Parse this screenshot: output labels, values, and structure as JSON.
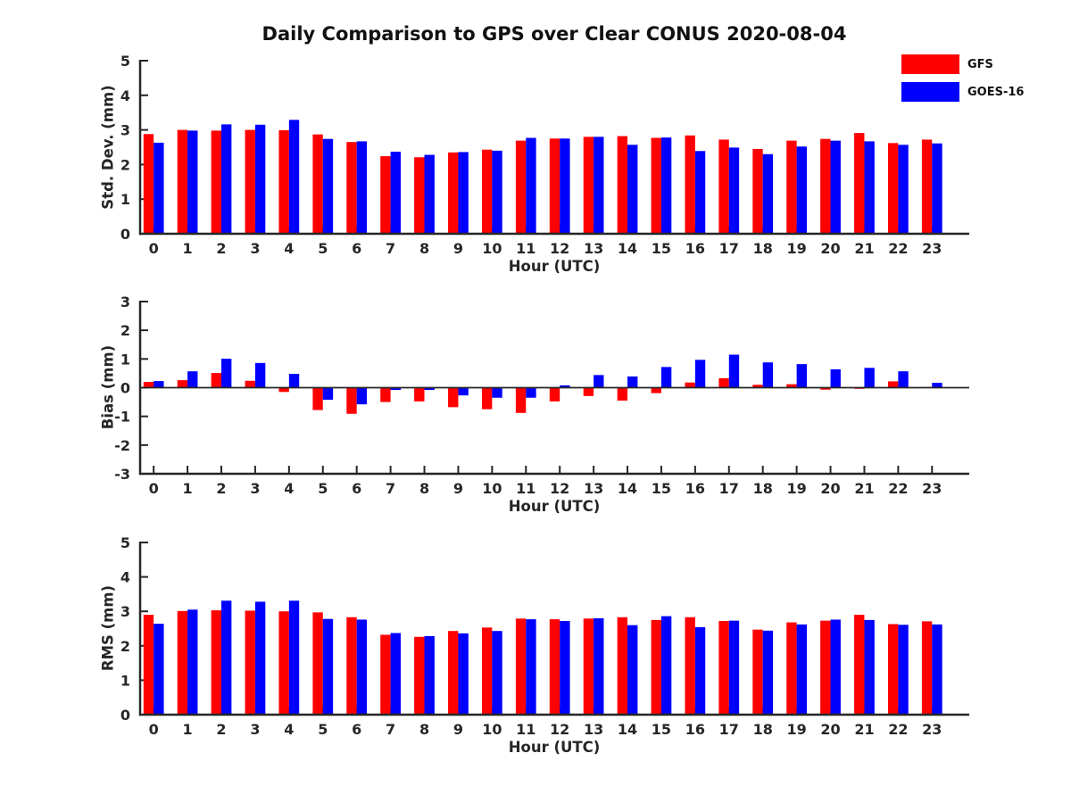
{
  "title": "Daily Comparison to GPS over Clear CONUS 2020-08-04",
  "colors": {
    "gfs": "#ff0000",
    "goes16": "#0000ff",
    "axis": "#262626"
  },
  "legend": [
    {
      "label": "GFS",
      "color": "#ff0000"
    },
    {
      "label": "GOES-16",
      "color": "#0000ff"
    }
  ],
  "chart_data": [
    {
      "type": "bar",
      "name": "std-dev",
      "ylabel": "Std. Dev. (mm)",
      "xlabel": "Hour (UTC)",
      "ylim": [
        0,
        5
      ],
      "yticks": [
        0,
        1,
        2,
        3,
        4,
        5
      ],
      "grid": false,
      "legend_position": "top-right",
      "categories": [
        0,
        1,
        2,
        3,
        4,
        5,
        6,
        7,
        8,
        9,
        10,
        11,
        12,
        13,
        14,
        15,
        16,
        17,
        18,
        19,
        20,
        21,
        22,
        23
      ],
      "series": [
        {
          "name": "GFS",
          "color": "#ff0000",
          "values": [
            2.88,
            3.0,
            2.98,
            3.0,
            2.99,
            2.87,
            2.65,
            2.24,
            2.21,
            2.35,
            2.43,
            2.69,
            2.75,
            2.8,
            2.82,
            2.77,
            2.84,
            2.72,
            2.45,
            2.69,
            2.74,
            2.91,
            2.62,
            2.72
          ]
        },
        {
          "name": "GOES-16",
          "color": "#0000ff",
          "values": [
            2.63,
            2.98,
            3.16,
            3.15,
            3.29,
            2.74,
            2.67,
            2.37,
            2.28,
            2.36,
            2.4,
            2.77,
            2.75,
            2.8,
            2.57,
            2.78,
            2.39,
            2.49,
            2.3,
            2.52,
            2.69,
            2.67,
            2.57,
            2.61
          ]
        }
      ]
    },
    {
      "type": "bar",
      "name": "bias",
      "ylabel": "Bias (mm)",
      "xlabel": "Hour (UTC)",
      "ylim": [
        -3,
        3
      ],
      "yticks": [
        -3,
        -2,
        -1,
        0,
        1,
        2,
        3
      ],
      "grid": false,
      "categories": [
        0,
        1,
        2,
        3,
        4,
        5,
        6,
        7,
        8,
        9,
        10,
        11,
        12,
        13,
        14,
        15,
        16,
        17,
        18,
        19,
        20,
        21,
        22,
        23
      ],
      "series": [
        {
          "name": "GFS",
          "color": "#ff0000",
          "values": [
            0.2,
            0.26,
            0.51,
            0.24,
            -0.15,
            -0.78,
            -0.91,
            -0.5,
            -0.48,
            -0.68,
            -0.75,
            -0.88,
            -0.48,
            -0.29,
            -0.45,
            -0.19,
            0.18,
            0.33,
            0.1,
            0.12,
            -0.07,
            -0.04,
            0.22,
            0.02
          ]
        },
        {
          "name": "GOES-16",
          "color": "#0000ff",
          "values": [
            0.23,
            0.57,
            1.01,
            0.86,
            0.48,
            -0.42,
            -0.58,
            -0.08,
            -0.08,
            -0.27,
            -0.35,
            -0.35,
            0.08,
            0.44,
            0.39,
            0.72,
            0.97,
            1.15,
            0.88,
            0.82,
            0.64,
            0.69,
            0.57,
            0.17
          ]
        }
      ]
    },
    {
      "type": "bar",
      "name": "rms",
      "ylabel": "RMS (mm)",
      "xlabel": "Hour (UTC)",
      "ylim": [
        0,
        5
      ],
      "yticks": [
        0,
        1,
        2,
        3,
        4,
        5
      ],
      "grid": false,
      "categories": [
        0,
        1,
        2,
        3,
        4,
        5,
        6,
        7,
        8,
        9,
        10,
        11,
        12,
        13,
        14,
        15,
        16,
        17,
        18,
        19,
        20,
        21,
        22,
        23
      ],
      "series": [
        {
          "name": "GFS",
          "color": "#ff0000",
          "values": [
            2.9,
            3.01,
            3.03,
            3.02,
            3.0,
            2.97,
            2.83,
            2.32,
            2.26,
            2.43,
            2.53,
            2.79,
            2.77,
            2.79,
            2.83,
            2.75,
            2.83,
            2.72,
            2.47,
            2.68,
            2.73,
            2.9,
            2.63,
            2.71
          ]
        },
        {
          "name": "GOES-16",
          "color": "#0000ff",
          "values": [
            2.64,
            3.05,
            3.31,
            3.28,
            3.31,
            2.78,
            2.76,
            2.37,
            2.28,
            2.36,
            2.43,
            2.77,
            2.72,
            2.8,
            2.6,
            2.86,
            2.54,
            2.73,
            2.44,
            2.62,
            2.76,
            2.75,
            2.61,
            2.62
          ]
        }
      ]
    }
  ]
}
